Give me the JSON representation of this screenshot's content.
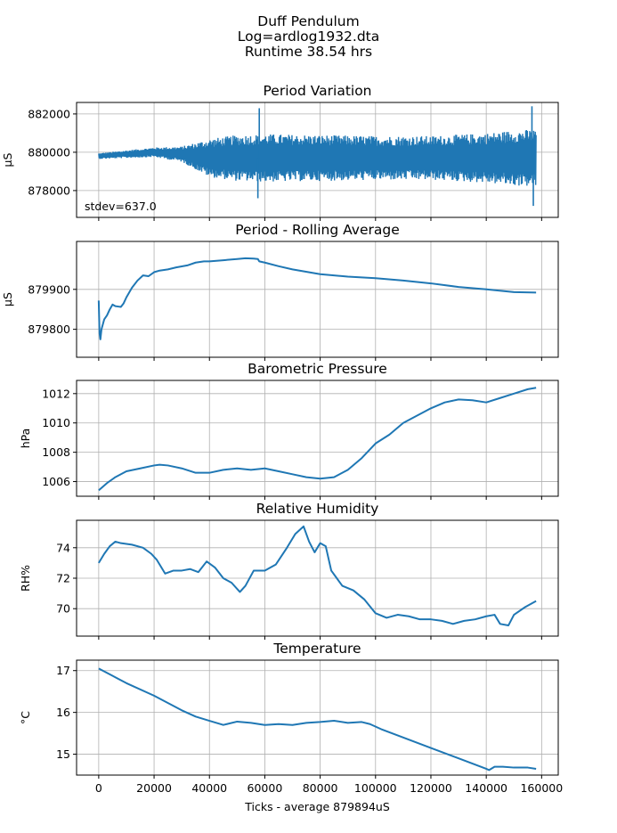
{
  "figure": {
    "title_lines": [
      "Duff Pendulum",
      "Log=ardlog1932.dta",
      "Runtime 38.54 hrs"
    ]
  },
  "chart_data": [
    {
      "type": "line",
      "title": "Period Variation",
      "ylabel": "µS",
      "xlim": [
        -8000,
        166000
      ],
      "ylim": [
        876600,
        882600
      ],
      "xticks": [
        0,
        20000,
        40000,
        60000,
        80000,
        100000,
        120000,
        140000,
        160000
      ],
      "yticks": [
        878000,
        880000,
        882000
      ],
      "yticklabels": [
        "878000",
        "880000",
        "882000"
      ],
      "grid": true,
      "color": "#1f77b4",
      "annotation": "stdev=637.0",
      "series": [
        {
          "x": [
            0,
            10000,
            20000,
            30000,
            35000,
            40000,
            50000,
            60000,
            80000,
            100000,
            120000,
            140000,
            150000,
            158000
          ],
          "y_center": [
            879800,
            879900,
            880000,
            879900,
            879800,
            879700,
            879700,
            879700,
            879700,
            879700,
            879700,
            879700,
            879700,
            879700
          ],
          "y_amplitude": [
            150,
            200,
            250,
            400,
            700,
            1000,
            1200,
            1250,
            1200,
            1150,
            1150,
            1300,
            1450,
            1500
          ],
          "spikes": [
            {
              "x": 58000,
              "y": 882300
            },
            {
              "x": 57500,
              "y": 877600
            },
            {
              "x": 156500,
              "y": 882400
            },
            {
              "x": 157000,
              "y": 877200
            }
          ]
        }
      ]
    },
    {
      "type": "line",
      "title": "Period - Rolling Average",
      "ylabel": "µS",
      "xlim": [
        -8000,
        166000
      ],
      "ylim": [
        879730,
        880020
      ],
      "xticks": [
        0,
        20000,
        40000,
        60000,
        80000,
        100000,
        120000,
        140000,
        160000
      ],
      "yticks": [
        879800,
        879900
      ],
      "yticklabels": [
        "879800",
        "879900"
      ],
      "grid": true,
      "color": "#1f77b4",
      "series": [
        {
          "x": [
            0,
            300,
            600,
            1000,
            2000,
            3000,
            4000,
            5000,
            6000,
            7000,
            8000,
            9000,
            10000,
            12000,
            14000,
            16000,
            18000,
            20000,
            22000,
            25000,
            28000,
            32000,
            35000,
            38000,
            40000,
            45000,
            50000,
            53000,
            56000,
            57500,
            58000,
            60000,
            65000,
            70000,
            80000,
            90000,
            100000,
            110000,
            120000,
            130000,
            140000,
            150000,
            158000
          ],
          "y": [
            879872,
            879790,
            879775,
            879800,
            879825,
            879835,
            879850,
            879862,
            879858,
            879857,
            879856,
            879865,
            879880,
            879904,
            879922,
            879935,
            879933,
            879943,
            879947,
            879950,
            879955,
            879960,
            879967,
            879970,
            879970,
            879973,
            879976,
            879978,
            879977,
            879976,
            879970,
            879967,
            879958,
            879950,
            879938,
            879932,
            879928,
            879922,
            879915,
            879906,
            879900,
            879893,
            879892
          ]
        }
      ]
    },
    {
      "type": "line",
      "title": "Barometric Pressure",
      "ylabel": "hPa",
      "xlim": [
        -8000,
        166000
      ],
      "ylim": [
        1005,
        1012.9
      ],
      "xticks": [
        0,
        20000,
        40000,
        60000,
        80000,
        100000,
        120000,
        140000,
        160000
      ],
      "yticks": [
        1006,
        1008,
        1010,
        1012
      ],
      "yticklabels": [
        "1006",
        "1008",
        "1010",
        "1012"
      ],
      "grid": true,
      "color": "#1f77b4",
      "series": [
        {
          "x": [
            0,
            3000,
            6000,
            10000,
            15000,
            20000,
            22000,
            25000,
            30000,
            35000,
            40000,
            45000,
            50000,
            55000,
            60000,
            65000,
            70000,
            75000,
            80000,
            85000,
            90000,
            95000,
            100000,
            105000,
            110000,
            115000,
            120000,
            125000,
            130000,
            135000,
            140000,
            145000,
            150000,
            155000,
            158000
          ],
          "y": [
            1005.4,
            1005.9,
            1006.3,
            1006.7,
            1006.9,
            1007.1,
            1007.15,
            1007.1,
            1006.9,
            1006.6,
            1006.6,
            1006.8,
            1006.9,
            1006.8,
            1006.9,
            1006.7,
            1006.5,
            1006.3,
            1006.2,
            1006.3,
            1006.8,
            1007.6,
            1008.6,
            1009.2,
            1010.0,
            1010.5,
            1011.0,
            1011.4,
            1011.6,
            1011.55,
            1011.4,
            1011.7,
            1012.0,
            1012.3,
            1012.4
          ]
        }
      ]
    },
    {
      "type": "line",
      "title": "Relative Humidity",
      "ylabel": "RH%",
      "xlim": [
        -8000,
        166000
      ],
      "ylim": [
        68.2,
        75.8
      ],
      "xticks": [
        0,
        20000,
        40000,
        60000,
        80000,
        100000,
        120000,
        140000,
        160000
      ],
      "yticks": [
        70,
        72,
        74
      ],
      "yticklabels": [
        "70",
        "72",
        "74"
      ],
      "grid": true,
      "color": "#1f77b4",
      "series": [
        {
          "x": [
            0,
            2000,
            4000,
            6000,
            8000,
            12000,
            16000,
            19000,
            21000,
            24000,
            27000,
            30000,
            33000,
            36000,
            39000,
            42000,
            45000,
            48000,
            51000,
            53000,
            56000,
            60000,
            64000,
            68000,
            71000,
            74000,
            76000,
            78000,
            80000,
            82000,
            84000,
            86000,
            88000,
            92000,
            96000,
            100000,
            104000,
            108000,
            112000,
            116000,
            120000,
            124000,
            128000,
            132000,
            136000,
            140000,
            143000,
            145000,
            148000,
            150000,
            154000,
            158000
          ],
          "y": [
            73.0,
            73.6,
            74.1,
            74.4,
            74.3,
            74.2,
            74.0,
            73.6,
            73.2,
            72.3,
            72.5,
            72.5,
            72.6,
            72.4,
            73.1,
            72.7,
            72.0,
            71.7,
            71.1,
            71.5,
            72.5,
            72.5,
            72.9,
            74.0,
            74.9,
            75.4,
            74.4,
            73.7,
            74.3,
            74.1,
            72.5,
            72.0,
            71.5,
            71.2,
            70.6,
            69.7,
            69.4,
            69.6,
            69.5,
            69.3,
            69.3,
            69.2,
            69.0,
            69.2,
            69.3,
            69.5,
            69.6,
            69.0,
            68.9,
            69.6,
            70.1,
            70.5
          ]
        }
      ]
    },
    {
      "type": "line",
      "title": "Temperature",
      "ylabel": "°C",
      "xlabel": "Ticks - average 879894uS",
      "xlim": [
        -8000,
        166000
      ],
      "ylim": [
        14.5,
        17.25
      ],
      "xticks": [
        0,
        20000,
        40000,
        60000,
        80000,
        100000,
        120000,
        140000,
        160000
      ],
      "xticklabels": [
        "0",
        "20000",
        "40000",
        "60000",
        "80000",
        "100000",
        "120000",
        "140000",
        "160000"
      ],
      "yticks": [
        15,
        16,
        17
      ],
      "yticklabels": [
        "15",
        "16",
        "17"
      ],
      "grid": true,
      "color": "#1f77b4",
      "series": [
        {
          "x": [
            0,
            10000,
            20000,
            30000,
            35000,
            40000,
            45000,
            50000,
            55000,
            60000,
            65000,
            70000,
            75000,
            80000,
            85000,
            90000,
            95000,
            98000,
            102000,
            110000,
            120000,
            130000,
            140000,
            141000,
            143000,
            146000,
            150000,
            155000,
            158000
          ],
          "y": [
            17.05,
            16.7,
            16.4,
            16.05,
            15.9,
            15.8,
            15.7,
            15.78,
            15.75,
            15.7,
            15.72,
            15.7,
            15.75,
            15.77,
            15.8,
            15.75,
            15.77,
            15.72,
            15.6,
            15.4,
            15.15,
            14.9,
            14.65,
            14.62,
            14.7,
            14.7,
            14.68,
            14.68,
            14.65
          ]
        }
      ]
    }
  ]
}
